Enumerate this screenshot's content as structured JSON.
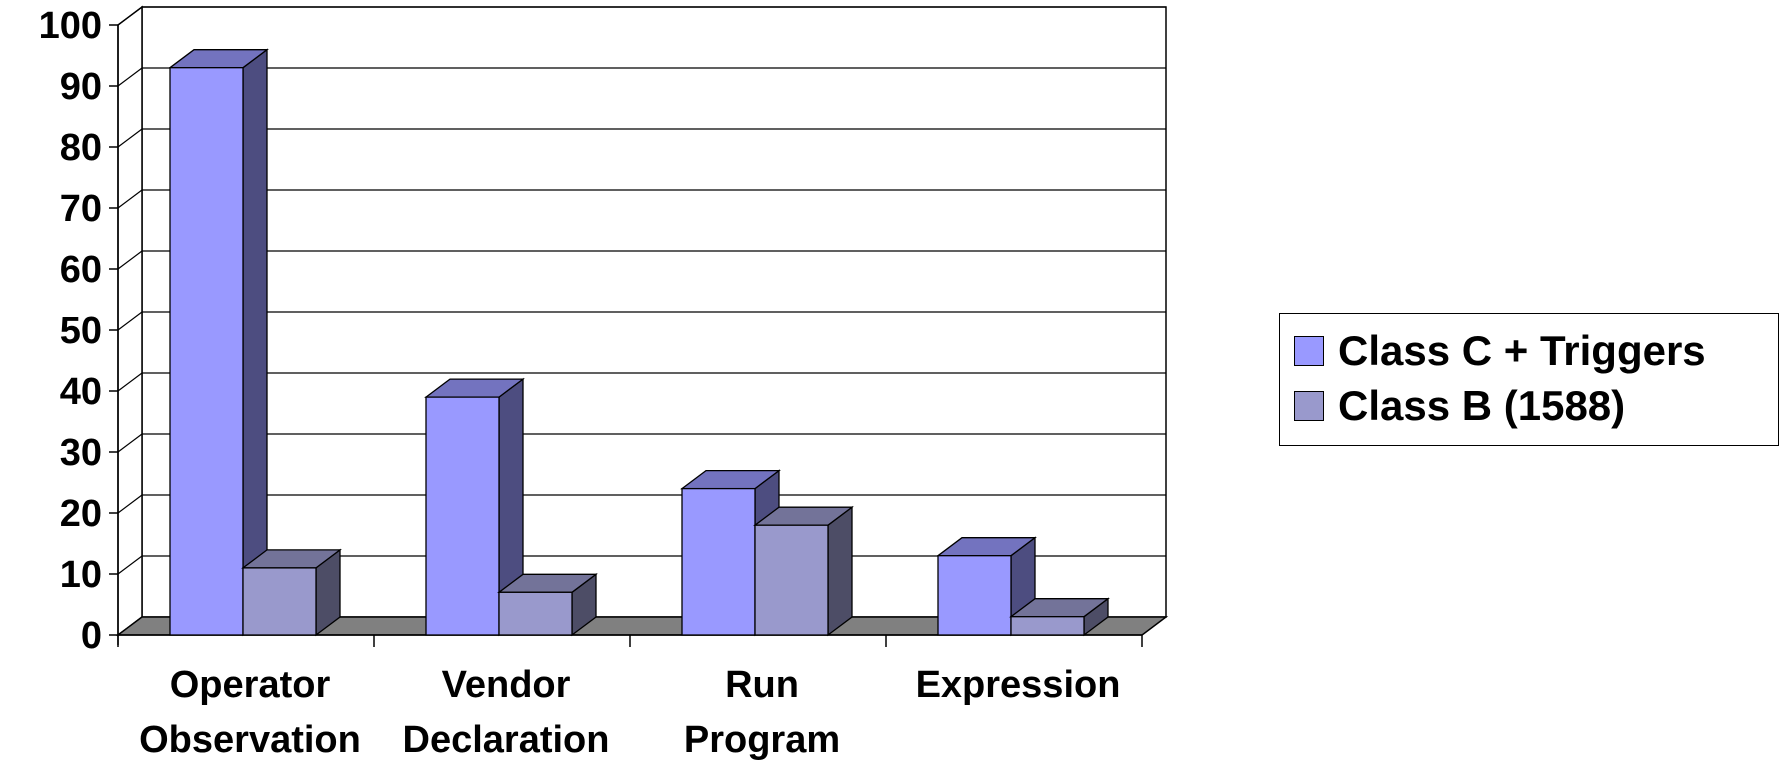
{
  "chart_data": {
    "type": "bar",
    "categories": [
      [
        "Operator",
        "Observation"
      ],
      [
        "Vendor",
        "Declaration"
      ],
      [
        "Run",
        "Program"
      ],
      [
        "Expression"
      ]
    ],
    "series": [
      {
        "name": "Class C + Triggers",
        "values": [
          93,
          39,
          24,
          13
        ],
        "color": "#9999ff"
      },
      {
        "name": "Class B (1588)",
        "values": [
          11,
          7,
          18,
          3
        ],
        "color": "#9999cc"
      }
    ],
    "ylim": [
      0,
      100
    ],
    "yticks": [
      0,
      10,
      20,
      30,
      40,
      50,
      60,
      70,
      80,
      90,
      100
    ],
    "grid": true,
    "legend_position": "right",
    "style": "3d-clustered-column"
  }
}
